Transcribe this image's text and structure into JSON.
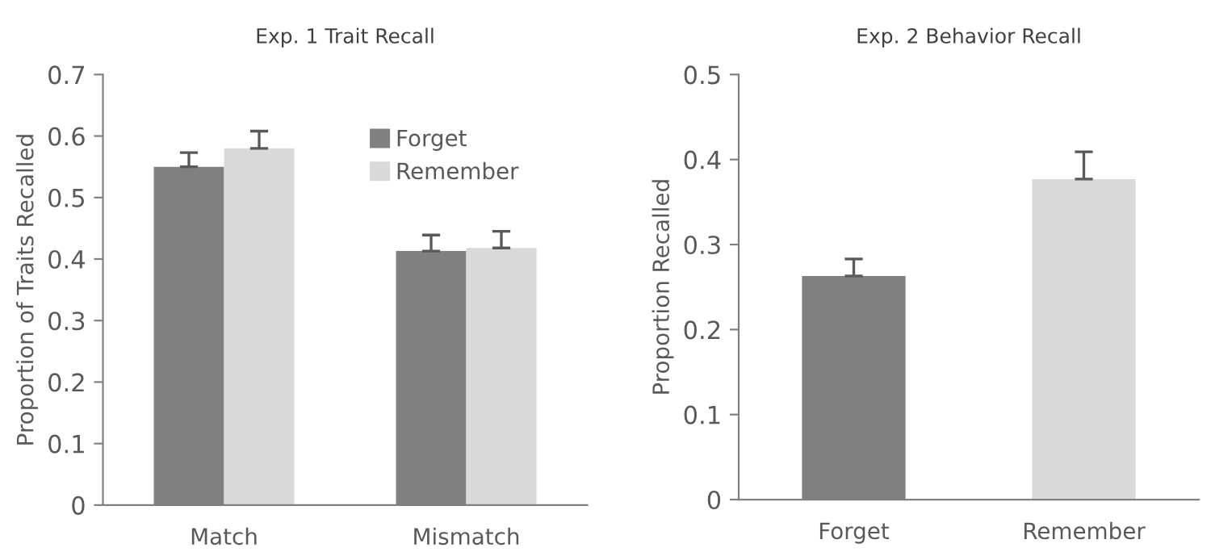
{
  "chart_data": [
    {
      "type": "bar",
      "title": "Exp. 1 Trait Recall",
      "ylabel": "Proportion of Traits Recalled",
      "categories": [
        "Match",
        "Mismatch"
      ],
      "series": [
        {
          "name": "Forget",
          "color": "#808080",
          "values": [
            0.55,
            0.413
          ],
          "errors": [
            0.023,
            0.026
          ]
        },
        {
          "name": "Remember",
          "color": "#d9d9d9",
          "values": [
            0.58,
            0.418
          ],
          "errors": [
            0.028,
            0.027
          ]
        }
      ],
      "ylim": [
        0,
        0.7
      ],
      "yticks": [
        0,
        0.1,
        0.2,
        0.3,
        0.4,
        0.5,
        0.6,
        0.7
      ],
      "grid": false,
      "legend": "top right"
    },
    {
      "type": "bar",
      "title": "Exp. 2 Behavior Recall",
      "ylabel": "Proportion Recalled",
      "categories": [
        "Forget",
        "Remember"
      ],
      "values": [
        0.263,
        0.377
      ],
      "errors": [
        0.02,
        0.032
      ],
      "colors": [
        "#808080",
        "#d9d9d9"
      ],
      "ylim": [
        0,
        0.5
      ],
      "yticks": [
        0,
        0.1,
        0.2,
        0.3,
        0.4,
        0.5
      ],
      "grid": false,
      "legend": false
    }
  ]
}
